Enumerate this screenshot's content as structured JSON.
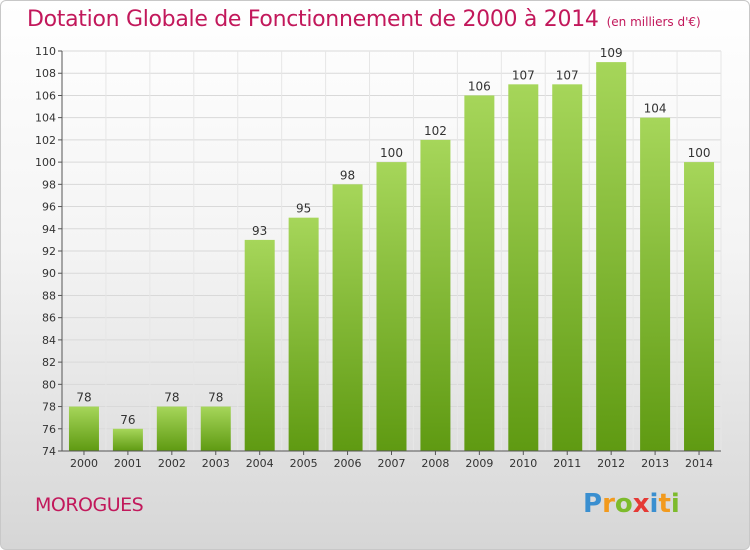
{
  "header": {
    "title": "Dotation Globale de Fonctionnement de 2000 à 2014",
    "unit": "(en milliers d'€)"
  },
  "footer": {
    "place": "MOROGUES",
    "logo": [
      "P",
      "r",
      "o",
      "x",
      "i",
      "t",
      "i"
    ]
  },
  "colors": {
    "title": "#c2185b",
    "bar_light": "#a6d65a",
    "bar_dark": "#5f9a12"
  },
  "chart_data": {
    "type": "bar",
    "title": "Dotation Globale de Fonctionnement de 2000 à 2014",
    "subtitle": "(en milliers d'€)",
    "xlabel": "",
    "ylabel": "",
    "categories": [
      "2000",
      "2001",
      "2002",
      "2003",
      "2004",
      "2005",
      "2006",
      "2007",
      "2008",
      "2009",
      "2010",
      "2011",
      "2012",
      "2013",
      "2014"
    ],
    "values": [
      78,
      76,
      78,
      78,
      93,
      95,
      98,
      100,
      102,
      106,
      107,
      107,
      109,
      104,
      100
    ],
    "ylim": [
      74,
      110
    ],
    "yticks": [
      74,
      76,
      78,
      80,
      82,
      84,
      86,
      88,
      90,
      92,
      94,
      96,
      98,
      100,
      102,
      104,
      106,
      108,
      110
    ],
    "grid": true,
    "legend": "none"
  }
}
